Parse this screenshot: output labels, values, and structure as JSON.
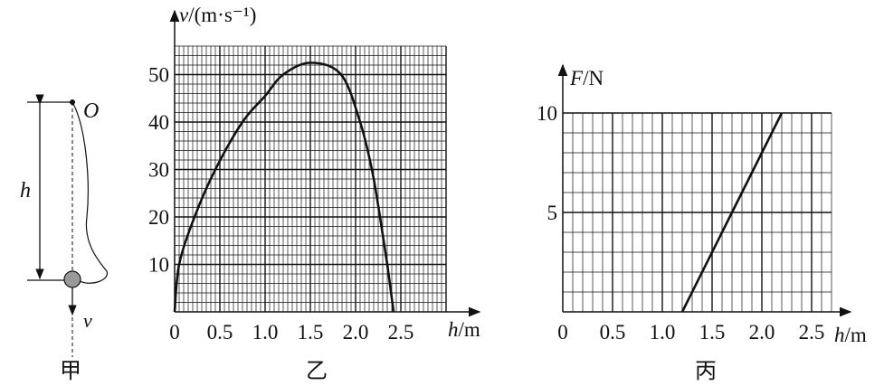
{
  "figure_a": {
    "caption": "甲",
    "point_label": "O",
    "height_label": "h",
    "velocity_label": "v"
  },
  "chart_data": [
    {
      "type": "line",
      "caption": "乙",
      "ylabel_var": "v",
      "ylabel_unit": "/(m·s⁻¹)",
      "xlabel_var": "h",
      "xlabel_unit": "/m",
      "x_ticks": [
        "0",
        "0.5",
        "1.0",
        "1.5",
        "2.0",
        "2.5"
      ],
      "x_tick_values": [
        0,
        0.5,
        1.0,
        1.5,
        2.0,
        2.5
      ],
      "y_ticks": [
        "10",
        "20",
        "30",
        "40",
        "50"
      ],
      "y_tick_values": [
        10,
        20,
        30,
        40,
        50
      ],
      "xlim": [
        0,
        3.0
      ],
      "ylim": [
        0,
        56
      ],
      "grid": true,
      "x": [
        0,
        0.05,
        0.22,
        0.45,
        0.75,
        1.0,
        1.2,
        1.5,
        1.84,
        2.05,
        2.18,
        2.27,
        2.35,
        2.42
      ],
      "y": [
        0,
        10,
        20,
        30,
        40,
        45.5,
        50,
        52.5,
        50,
        40,
        30,
        20,
        10,
        0
      ]
    },
    {
      "type": "line",
      "caption": "丙",
      "ylabel_var": "F",
      "ylabel_unit": "/N",
      "xlabel_var": "h",
      "xlabel_unit": "/m",
      "x_ticks": [
        "0",
        "0.5",
        "1.0",
        "1.5",
        "2.0",
        "2.5"
      ],
      "x_tick_values": [
        0,
        0.5,
        1.0,
        1.5,
        2.0,
        2.5
      ],
      "y_ticks": [
        "5",
        "10"
      ],
      "y_tick_values": [
        5,
        10
      ],
      "xlim": [
        0,
        2.7
      ],
      "ylim": [
        0,
        10
      ],
      "grid": true,
      "x": [
        1.2,
        2.2
      ],
      "y": [
        0,
        10
      ]
    }
  ]
}
